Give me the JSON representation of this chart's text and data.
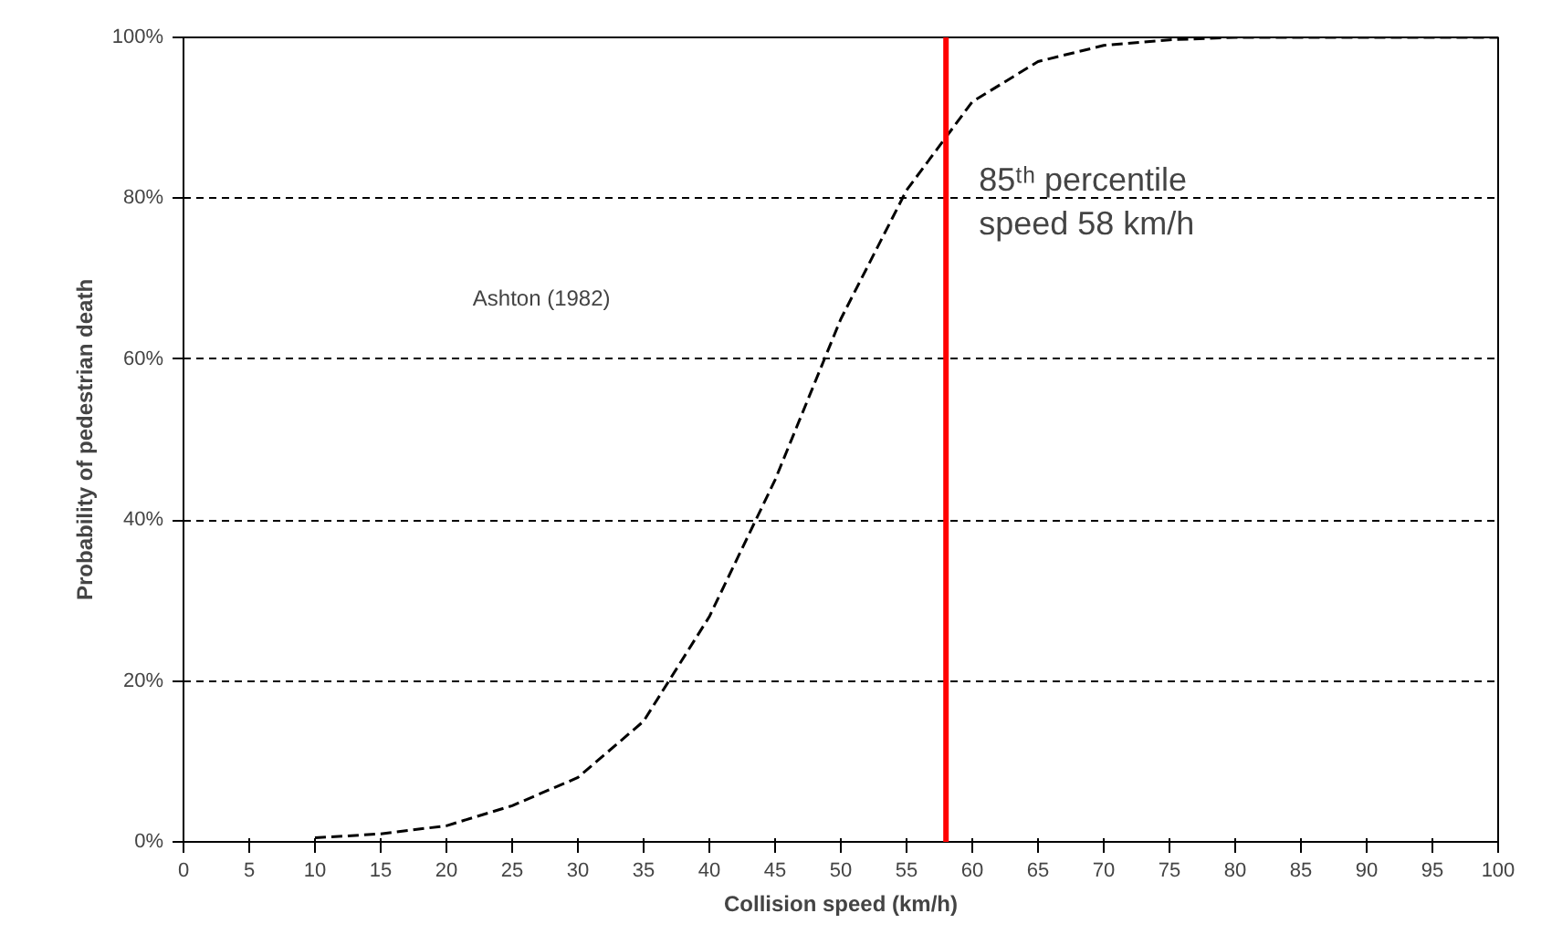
{
  "chart_data": {
    "type": "line",
    "xlabel": "Collision speed (km/h)",
    "ylabel": "Probability of pedestrian death",
    "x": [
      10,
      15,
      20,
      25,
      30,
      35,
      40,
      45,
      50,
      55,
      60,
      65,
      70,
      75,
      80,
      85,
      90,
      95,
      100
    ],
    "series": [
      {
        "color": "#000000",
        "values": [
          0.5,
          1,
          2,
          4.5,
          8,
          15,
          28,
          45,
          65,
          81,
          92,
          97,
          99,
          99.7,
          100,
          100,
          100,
          100,
          100
        ]
      }
    ],
    "line_style": "dashed",
    "marker": "none",
    "grid": "y",
    "xlim": [
      0,
      100
    ],
    "xticks": [
      0,
      5,
      10,
      15,
      20,
      25,
      30,
      35,
      40,
      45,
      50,
      55,
      60,
      65,
      70,
      75,
      80,
      85,
      90,
      95,
      100
    ],
    "ylim": [
      0,
      100
    ],
    "yticks": [
      {
        "value": 0,
        "label": "0%"
      },
      {
        "value": 20,
        "label": "20%"
      },
      {
        "value": 40,
        "label": "40%"
      },
      {
        "value": 60,
        "label": "60%"
      },
      {
        "value": 80,
        "label": "80%"
      },
      {
        "value": 100,
        "label": "100%"
      }
    ],
    "ref_lines": [
      {
        "axis": "x",
        "value": 58,
        "label": "85ᵗʰ percentile speed 58 km/h",
        "color": "#ff0000"
      }
    ],
    "annotations": [
      "Ashton (1982)"
    ]
  }
}
